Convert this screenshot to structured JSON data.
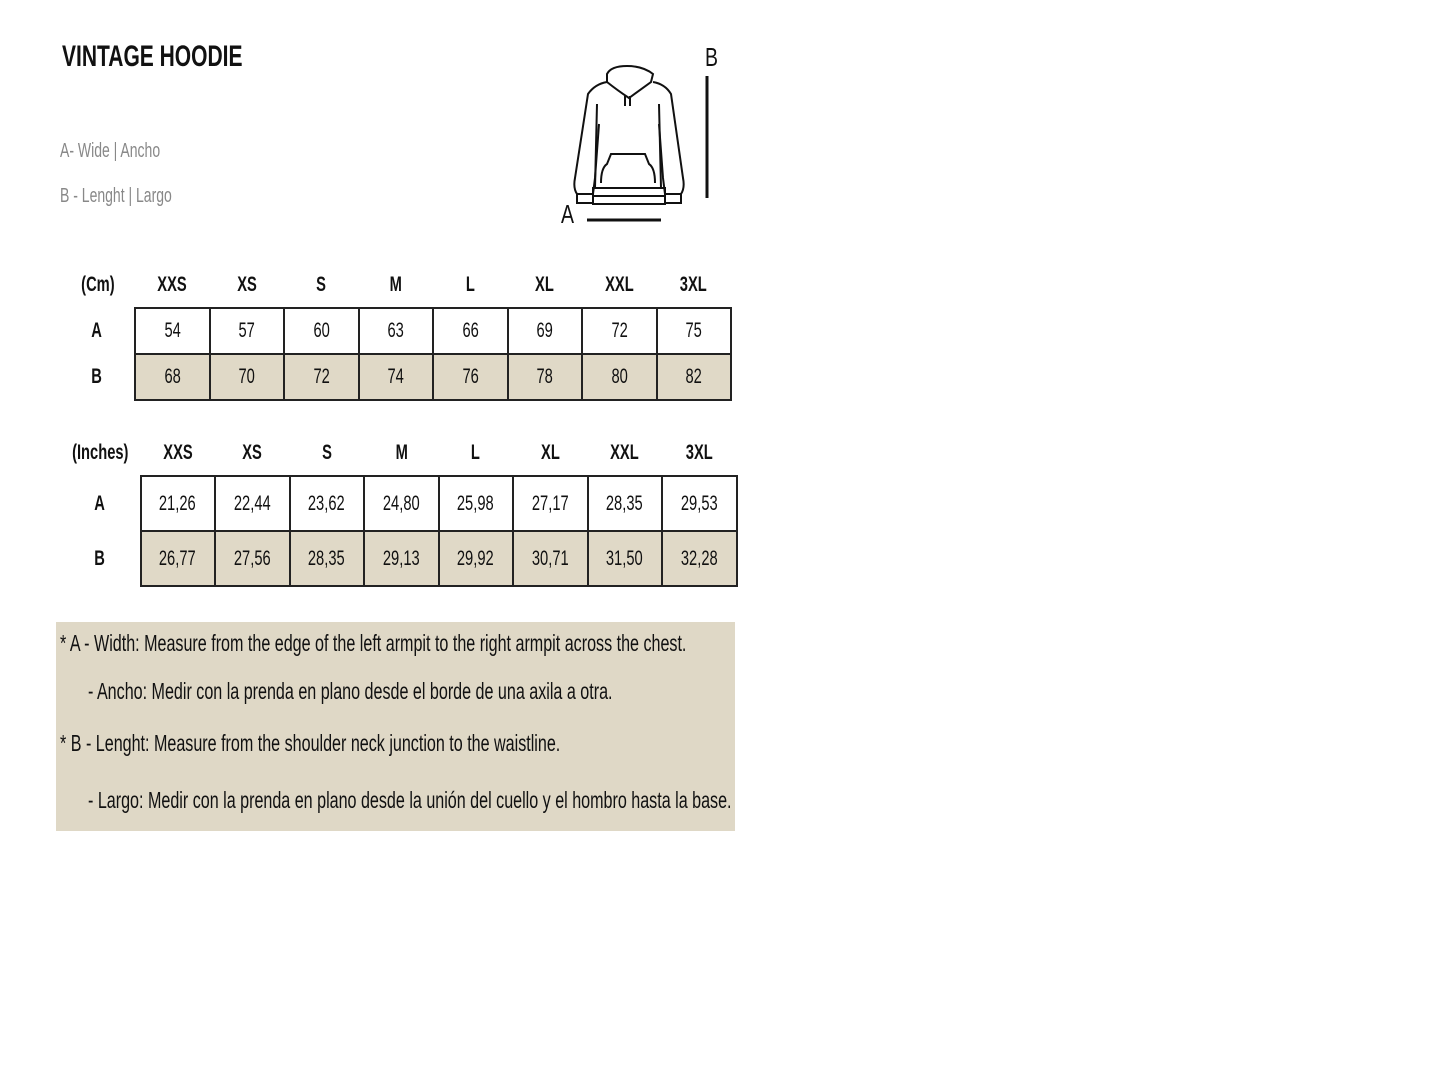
{
  "title": "VINTAGE HOODIE",
  "legend": [
    "A- Wide | Ancho",
    "B - Lenght |  Largo"
  ],
  "diagram": {
    "label_a": "A",
    "label_b": "B"
  },
  "sizes": [
    "XXS",
    "XS",
    "S",
    "M",
    "L",
    "XL",
    "XXL",
    "3XL"
  ],
  "cm_table": {
    "unit": "(Cm)",
    "rows": [
      {
        "label": "A",
        "values": [
          "54",
          "57",
          "60",
          "63",
          "66",
          "69",
          "72",
          "75"
        ]
      },
      {
        "label": "B",
        "values": [
          "68",
          "70",
          "72",
          "74",
          "76",
          "78",
          "80",
          "82"
        ]
      }
    ]
  },
  "inch_table": {
    "unit": "(Inches)",
    "rows": [
      {
        "label": "A",
        "values": [
          "21,26",
          "22,44",
          "23,62",
          "24,80",
          "25,98",
          "27,17",
          "28,35",
          "29,53"
        ]
      },
      {
        "label": "B",
        "values": [
          "26,77",
          "27,56",
          "28,35",
          "29,13",
          "29,92",
          "30,71",
          "31,50",
          "32,28"
        ]
      }
    ]
  },
  "notes": [
    "* A - Width: Measure from the edge of the left armpit to the right armpit across the chest.",
    "- Ancho: Medir con la prenda en plano desde el borde de una axila a otra.",
    "* B - Lenght: Measure from the shoulder neck junction to the waistline.",
    "- Largo: Medir con la prenda en plano desde la unión del cuello y el hombro hasta la base."
  ],
  "colors": {
    "row_b_bg": "#e0d9c7",
    "notes_bg": "#dfd8c6"
  }
}
